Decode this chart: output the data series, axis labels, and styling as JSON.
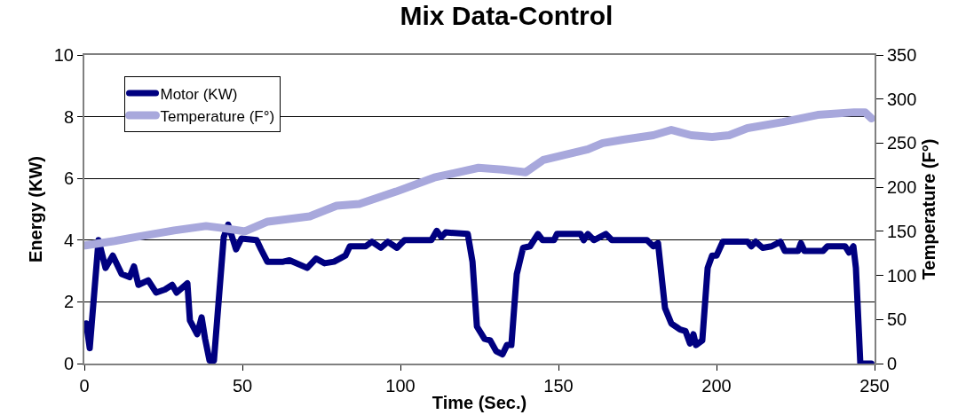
{
  "chart_data": {
    "type": "line",
    "title": "Mix Data-Control",
    "xlabel": "Time (Sec.)",
    "ylabel": "Energy (KW)",
    "y2label": "Temperature (F°)",
    "xlim": [
      0,
      250
    ],
    "xticks": [
      0,
      50,
      100,
      150,
      200,
      250
    ],
    "ylim": [
      0,
      10
    ],
    "yticks": [
      0,
      2,
      4,
      6,
      8,
      10
    ],
    "y2lim": [
      0,
      350
    ],
    "y2ticks": [
      0,
      50,
      100,
      150,
      200,
      250,
      300,
      350
    ],
    "grid": "y",
    "legend": "top left",
    "series": [
      {
        "name": "Motor (KW)",
        "color": "#000080",
        "x": [
          0.6,
          1.7,
          4.5,
          6.7,
          9,
          11.8,
          14.3,
          15.7,
          17.1,
          20.2,
          22.7,
          25.5,
          27.8,
          29.2,
          32.6,
          33.4,
          35.7,
          37.1,
          38.2,
          39.6,
          41,
          44.1,
          45.5,
          48,
          49.7,
          54.5,
          55.9,
          57.9,
          62.9,
          64.9,
          70.5,
          73.3,
          76,
          79,
          82.6,
          84,
          89,
          91,
          93.8,
          96,
          98.9,
          101.3,
          109.8,
          111.5,
          112.9,
          114.3,
          121.3,
          122.8,
          124.2,
          126.6,
          128.4,
          130.3,
          132.3,
          133.7,
          135.1,
          136.8,
          138.8,
          141,
          143.5,
          145,
          148.6,
          149.5,
          150.8,
          157,
          158,
          159.3,
          161.2,
          165,
          166.9,
          178,
          180,
          181.5,
          183.7,
          185.7,
          188.5,
          190.2,
          191.6,
          192.7,
          193.5,
          195.5,
          197.2,
          198.6,
          200,
          202,
          209.8,
          211,
          212.4,
          214.6,
          217.4,
          220.2,
          221.6,
          225.8,
          226.7,
          227.8,
          233.7,
          235.1,
          240.7,
          241.9,
          243.3,
          244.1,
          245.5,
          249
        ],
        "values": [
          1.3,
          0.5,
          4.0,
          3.1,
          3.5,
          2.9,
          2.8,
          3.15,
          2.55,
          2.7,
          2.3,
          2.4,
          2.55,
          2.3,
          2.6,
          1.4,
          0.95,
          1.5,
          0.8,
          0.1,
          0.1,
          4.1,
          4.5,
          3.7,
          4.05,
          4.0,
          3.7,
          3.3,
          3.3,
          3.35,
          3.1,
          3.4,
          3.25,
          3.3,
          3.5,
          3.8,
          3.8,
          3.95,
          3.75,
          3.95,
          3.75,
          4.0,
          4.0,
          4.3,
          4.1,
          4.25,
          4.2,
          3.3,
          1.2,
          0.8,
          0.75,
          0.4,
          0.3,
          0.6,
          0.6,
          2.9,
          3.75,
          3.8,
          4.2,
          4.0,
          4.0,
          4.2,
          4.2,
          4.2,
          4.0,
          4.2,
          4.0,
          4.2,
          4.0,
          4.0,
          3.8,
          3.9,
          1.8,
          1.3,
          1.1,
          1.05,
          0.65,
          0.95,
          0.6,
          0.75,
          3.1,
          3.5,
          3.5,
          3.95,
          3.95,
          3.8,
          3.95,
          3.75,
          3.8,
          3.95,
          3.65,
          3.65,
          3.9,
          3.65,
          3.65,
          3.8,
          3.8,
          3.6,
          3.8,
          3.1,
          0,
          0
        ]
      },
      {
        "name": "Temperature (F°)",
        "color": "#a8a8dc",
        "axis": "y2",
        "x": [
          0.3,
          9.6,
          17,
          28.4,
          38.5,
          43,
          50.8,
          58,
          71.3,
          79.8,
          87,
          98.6,
          110.7,
          124.7,
          132.3,
          139.6,
          145.2,
          159.3,
          164,
          170.5,
          180,
          185.7,
          192,
          198.6,
          204,
          209.8,
          221,
          232,
          243.5,
          247,
          249
        ],
        "values": [
          134,
          139,
          144,
          151,
          156,
          154,
          150,
          161,
          167,
          179,
          181,
          195,
          211,
          222,
          220,
          217,
          231,
          243,
          250,
          254,
          259,
          265,
          259,
          257,
          259,
          267,
          274,
          282,
          285,
          285,
          278
        ]
      }
    ]
  }
}
